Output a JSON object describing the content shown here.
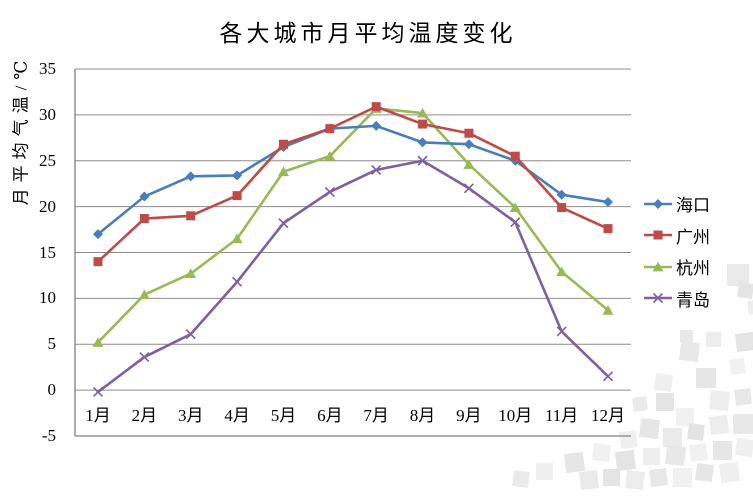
{
  "chart_data": {
    "type": "line",
    "title": "各大城市月平均温度变化",
    "y_axis_title": "月平均气温/℃",
    "categories": [
      "1月",
      "2月",
      "3月",
      "4月",
      "5月",
      "6月",
      "7月",
      "8月",
      "9月",
      "10月",
      "11月",
      "12月"
    ],
    "series": [
      {
        "id": "haikou",
        "name": "海口",
        "color": "#4A7EBB",
        "marker": "diamond",
        "values": [
          17.0,
          21.1,
          23.3,
          23.4,
          26.5,
          28.5,
          28.8,
          27.0,
          26.8,
          25.0,
          21.3,
          20.5
        ]
      },
      {
        "id": "guangzhou",
        "name": "广州",
        "color": "#BE4B48",
        "marker": "square",
        "values": [
          14.0,
          18.7,
          19.0,
          21.2,
          26.8,
          28.5,
          30.9,
          29.0,
          28.0,
          25.5,
          19.9,
          17.6
        ]
      },
      {
        "id": "hangzhou",
        "name": "杭州",
        "color": "#98B954",
        "marker": "triangle",
        "values": [
          5.2,
          10.4,
          12.7,
          16.5,
          23.8,
          25.5,
          30.7,
          30.2,
          24.6,
          19.9,
          12.9,
          8.7
        ]
      },
      {
        "id": "qingdao",
        "name": "青岛",
        "color": "#7D60A0",
        "marker": "x",
        "values": [
          -0.2,
          3.6,
          6.1,
          11.8,
          18.2,
          21.6,
          24.0,
          25.0,
          22.0,
          18.3,
          6.4,
          1.5
        ]
      }
    ],
    "y_ticks": [
      -5,
      0,
      5,
      10,
      15,
      20,
      25,
      30,
      35
    ],
    "ylim": [
      -5,
      35
    ],
    "grid": "horizontal",
    "legend_position": "right",
    "gridline_color": "#8C8C8C",
    "axis_color": "#7F7F7F"
  }
}
